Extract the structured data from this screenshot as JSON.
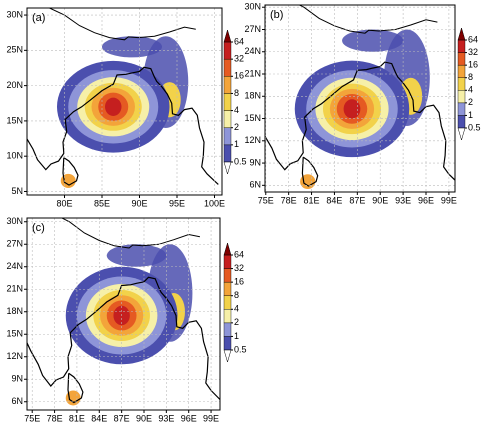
{
  "colorbar": {
    "ticks": [
      0.5,
      1,
      2,
      4,
      8,
      16,
      32,
      64
    ],
    "colors": [
      "#ffffff",
      "#4b4fae",
      "#8e95d8",
      "#f6f0a8",
      "#f2d24a",
      "#f3a43a",
      "#e55a22",
      "#c51f1f",
      "#7f0000"
    ]
  },
  "panels": [
    {
      "label": "(a)",
      "xlim": [
        75,
        101
      ],
      "ylim": [
        4.5,
        31
      ],
      "xticks": [
        {
          "value": 80,
          "label": "80E"
        },
        {
          "value": 85,
          "label": "85E"
        },
        {
          "value": 90,
          "label": "90E"
        },
        {
          "value": 95,
          "label": "95E"
        },
        {
          "value": 100,
          "label": "100E"
        }
      ],
      "yticks": [
        {
          "value": 5,
          "label": "5N"
        },
        {
          "value": 10,
          "label": "10N"
        },
        {
          "value": 15,
          "label": "15N"
        },
        {
          "value": 20,
          "label": "20N"
        },
        {
          "value": 25,
          "label": "25N"
        },
        {
          "value": 30,
          "label": "30N"
        }
      ]
    },
    {
      "label": "(b)",
      "xlim": [
        74.9,
        99.8
      ],
      "ylim": [
        5.1,
        30.3
      ],
      "xticks": [
        {
          "value": 75,
          "label": "75E"
        },
        {
          "value": 78,
          "label": "78E"
        },
        {
          "value": 81,
          "label": "81E"
        },
        {
          "value": 84,
          "label": "84E"
        },
        {
          "value": 87,
          "label": "87E"
        },
        {
          "value": 90,
          "label": "90E"
        },
        {
          "value": 93,
          "label": "93E"
        },
        {
          "value": 96,
          "label": "96E"
        },
        {
          "value": 99,
          "label": "99E"
        }
      ],
      "yticks": [
        {
          "value": 6,
          "label": "6N"
        },
        {
          "value": 9,
          "label": "9N"
        },
        {
          "value": 12,
          "label": "12N"
        },
        {
          "value": 15,
          "label": "15N"
        },
        {
          "value": 18,
          "label": "18N"
        },
        {
          "value": 21,
          "label": "21N"
        },
        {
          "value": 24,
          "label": "24N"
        },
        {
          "value": 27,
          "label": "27N"
        },
        {
          "value": 30,
          "label": "30N"
        }
      ]
    },
    {
      "label": "(c)",
      "xlim": [
        74.3,
        100.2
      ],
      "ylim": [
        4.9,
        30.5
      ],
      "xticks": [
        {
          "value": 75,
          "label": "75E"
        },
        {
          "value": 78,
          "label": "78E"
        },
        {
          "value": 81,
          "label": "81E"
        },
        {
          "value": 84,
          "label": "84E"
        },
        {
          "value": 87,
          "label": "87E"
        },
        {
          "value": 90,
          "label": "90E"
        },
        {
          "value": 93,
          "label": "93E"
        },
        {
          "value": 96,
          "label": "96E"
        },
        {
          "value": 99,
          "label": "99E"
        }
      ],
      "yticks": [
        {
          "value": 6,
          "label": "6N"
        },
        {
          "value": 9,
          "label": "9N"
        },
        {
          "value": 12,
          "label": "12N"
        },
        {
          "value": 15,
          "label": "15N"
        },
        {
          "value": 18,
          "label": "18N"
        },
        {
          "value": 21,
          "label": "21N"
        },
        {
          "value": 24,
          "label": "24N"
        },
        {
          "value": 27,
          "label": "27N"
        },
        {
          "value": 30,
          "label": "30N"
        }
      ]
    }
  ]
}
